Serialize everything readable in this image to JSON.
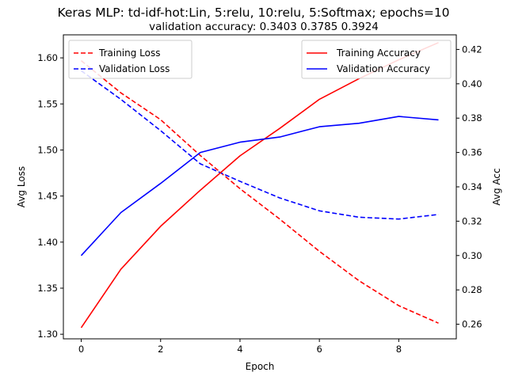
{
  "chart_data": {
    "type": "line",
    "title": "Keras MLP: td-idf-hot:Lin, 5:relu, 10:relu, 5:Softmax; epochs=10",
    "subtitle": "validation accuracy:  0.3403  0.3785  0.3924",
    "xlabel": "Epoch",
    "ylabel_left": "Avg Loss",
    "ylabel_right": "Avg Acc",
    "x": [
      0,
      1,
      2,
      3,
      4,
      5,
      6,
      7,
      8,
      9
    ],
    "xlim": [
      -0.45,
      9.45
    ],
    "x_ticks": [
      0,
      2,
      4,
      6,
      8
    ],
    "ylim_left": [
      1.295,
      1.625
    ],
    "y_ticks_left": [
      1.3,
      1.35,
      1.4,
      1.45,
      1.5,
      1.55,
      1.6
    ],
    "ylim_right": [
      0.2515,
      0.4285
    ],
    "y_ticks_right": [
      0.26,
      0.28,
      0.3,
      0.32,
      0.34,
      0.36,
      0.38,
      0.4,
      0.42
    ],
    "grid": false,
    "loss_series": [
      {
        "name": "Training Loss",
        "color": "#ff0000",
        "dash": "dashed",
        "axis": "left",
        "values": [
          1.597,
          1.562,
          1.533,
          1.494,
          1.458,
          1.425,
          1.39,
          1.358,
          1.331,
          1.312
        ]
      },
      {
        "name": "Validation Loss",
        "color": "#0000ff",
        "dash": "dashed",
        "axis": "left",
        "values": [
          1.586,
          1.555,
          1.521,
          1.485,
          1.466,
          1.448,
          1.434,
          1.427,
          1.425,
          1.43
        ]
      }
    ],
    "acc_series": [
      {
        "name": "Training Accuracy",
        "color": "#ff0000",
        "dash": "solid",
        "axis": "right",
        "values": [
          0.258,
          0.292,
          0.317,
          0.338,
          0.358,
          0.374,
          0.391,
          0.403,
          0.414,
          0.424
        ]
      },
      {
        "name": "Validation Accuracy",
        "color": "#0000ff",
        "dash": "solid",
        "axis": "right",
        "values": [
          0.3,
          0.325,
          0.342,
          0.36,
          0.366,
          0.369,
          0.375,
          0.377,
          0.381,
          0.379
        ]
      }
    ],
    "legend_loss_placement": "top-left",
    "legend_acc_placement": "top-right"
  }
}
